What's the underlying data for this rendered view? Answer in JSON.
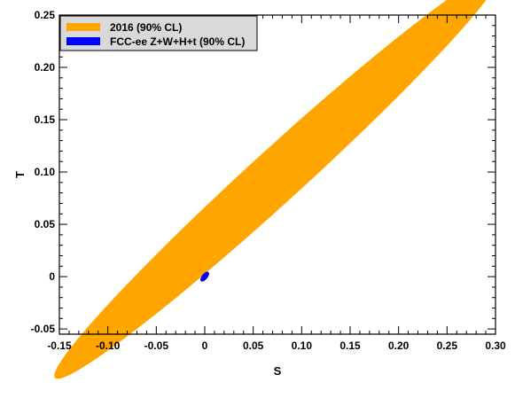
{
  "chart_data": {
    "type": "scatter",
    "title": "",
    "xlabel": "S",
    "ylabel": "T",
    "xlim": [
      -0.15,
      0.3
    ],
    "ylim": [
      -0.055,
      0.25
    ],
    "x_ticks": [
      "-0.15",
      "-0.10",
      "-0.05",
      "0",
      "0.05",
      "0.10",
      "0.15",
      "0.20",
      "0.25",
      "0.30"
    ],
    "y_ticks": [
      "-0.05",
      "0",
      "0.05",
      "0.10",
      "0.15",
      "0.20",
      "0.25"
    ],
    "grid": false,
    "legend_position": "top-left",
    "series": [
      {
        "name": "2016 (90% CL)",
        "color": "#ffa500",
        "shape": "ellipse",
        "center": [
          0.075,
          0.097
        ],
        "extent_x": [
          -0.101,
          0.233
        ],
        "extent_y": [
          -0.046,
          0.236
        ]
      },
      {
        "name": "FCC-ee Z+W+H+t (90% CL)",
        "color": "#0000ff",
        "shape": "ellipse",
        "center": [
          0.0,
          0.0
        ],
        "extent_x": [
          -0.004,
          0.004
        ],
        "extent_y": [
          -0.004,
          0.005
        ]
      }
    ]
  }
}
